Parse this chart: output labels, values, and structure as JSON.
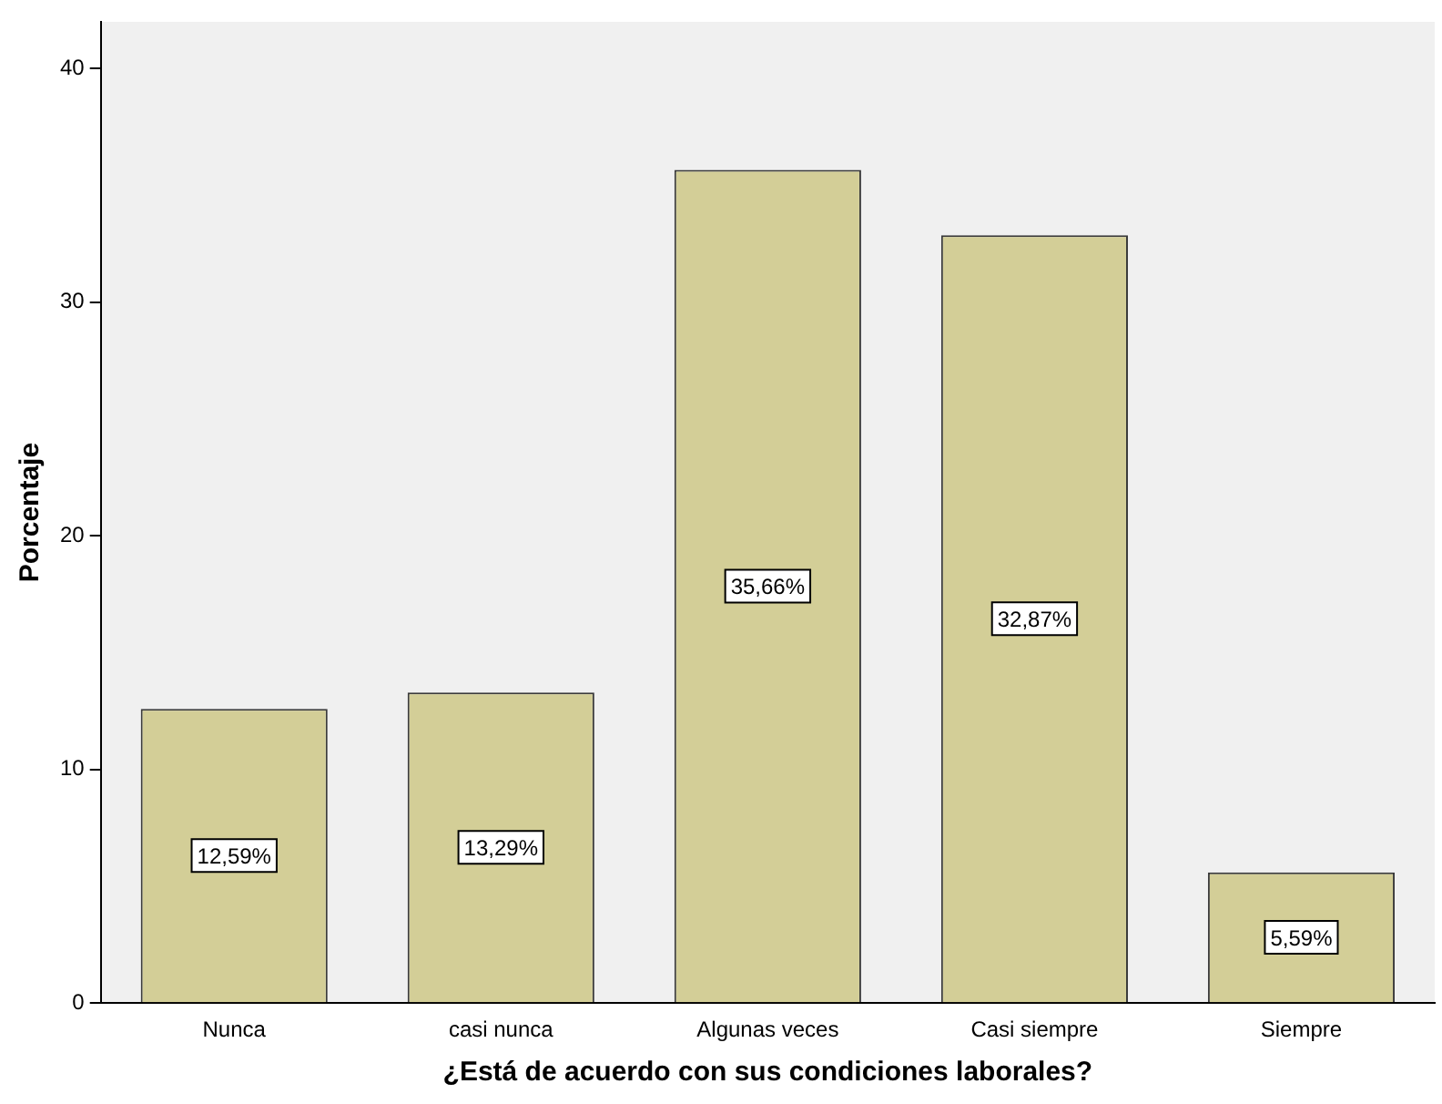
{
  "chart_data": {
    "type": "bar",
    "xlabel": "¿Está de acuerdo con sus condiciones laborales?",
    "ylabel": "Porcentaje",
    "categories": [
      "Nunca",
      "casi nunca",
      "Algunas veces",
      "Casi siempre",
      "Siempre"
    ],
    "values": [
      12.59,
      13.29,
      35.66,
      32.87,
      5.59
    ],
    "value_labels": [
      "12,59%",
      "13,29%",
      "35,66%",
      "32,87%",
      "5,59%"
    ],
    "color": "#d3ce97",
    "ylim": [
      0,
      42
    ],
    "yticks": [
      0,
      10,
      20,
      30,
      40
    ],
    "grid": false,
    "legend": false
  }
}
